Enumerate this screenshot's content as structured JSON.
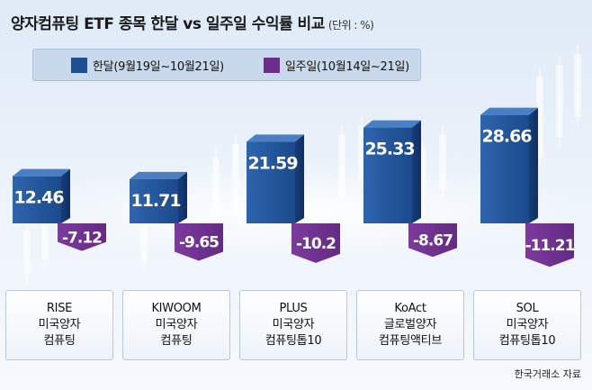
{
  "title": "양자컴퓨팅 ETF 종목 한달 vs 일주일 수익률 비교",
  "unit": "(단위 : %)",
  "source": "한국거래소 자료",
  "colors": {
    "month": "#1f4f93",
    "week": "#6c2e8a"
  },
  "chart_data": {
    "type": "bar",
    "title": "양자컴퓨팅 ETF 종목 한달 vs 일주일 수익률 비교",
    "unit": "(단위 : %)",
    "categories": [
      [
        "RISE",
        "미국양자",
        "컴퓨팅"
      ],
      [
        "KIWOOM",
        "미국양자",
        "컴퓨팅"
      ],
      [
        "PLUS",
        "미국양자",
        "컴퓨팅톱10"
      ],
      [
        "KoAct",
        "글로벌양자",
        "컴퓨팅액티브"
      ],
      [
        "SOL",
        "미국양자",
        "컴퓨팅톱10"
      ]
    ],
    "series": [
      {
        "name": "한달(9월19일~10월21일)",
        "values": [
          12.46,
          11.71,
          21.59,
          25.33,
          28.66
        ]
      },
      {
        "name": "일주일(10월14일~21일)",
        "values": [
          -7.12,
          -9.65,
          -10.2,
          -8.67,
          -11.21
        ]
      }
    ],
    "value_labels": [
      [
        "12.46",
        "11.71",
        "21.59",
        "25.33",
        "28.66"
      ],
      [
        "-7.12",
        "-9.65",
        "-10.2",
        "-8.67",
        "-11.21"
      ]
    ],
    "legend_position": "top-left",
    "grid": false
  }
}
